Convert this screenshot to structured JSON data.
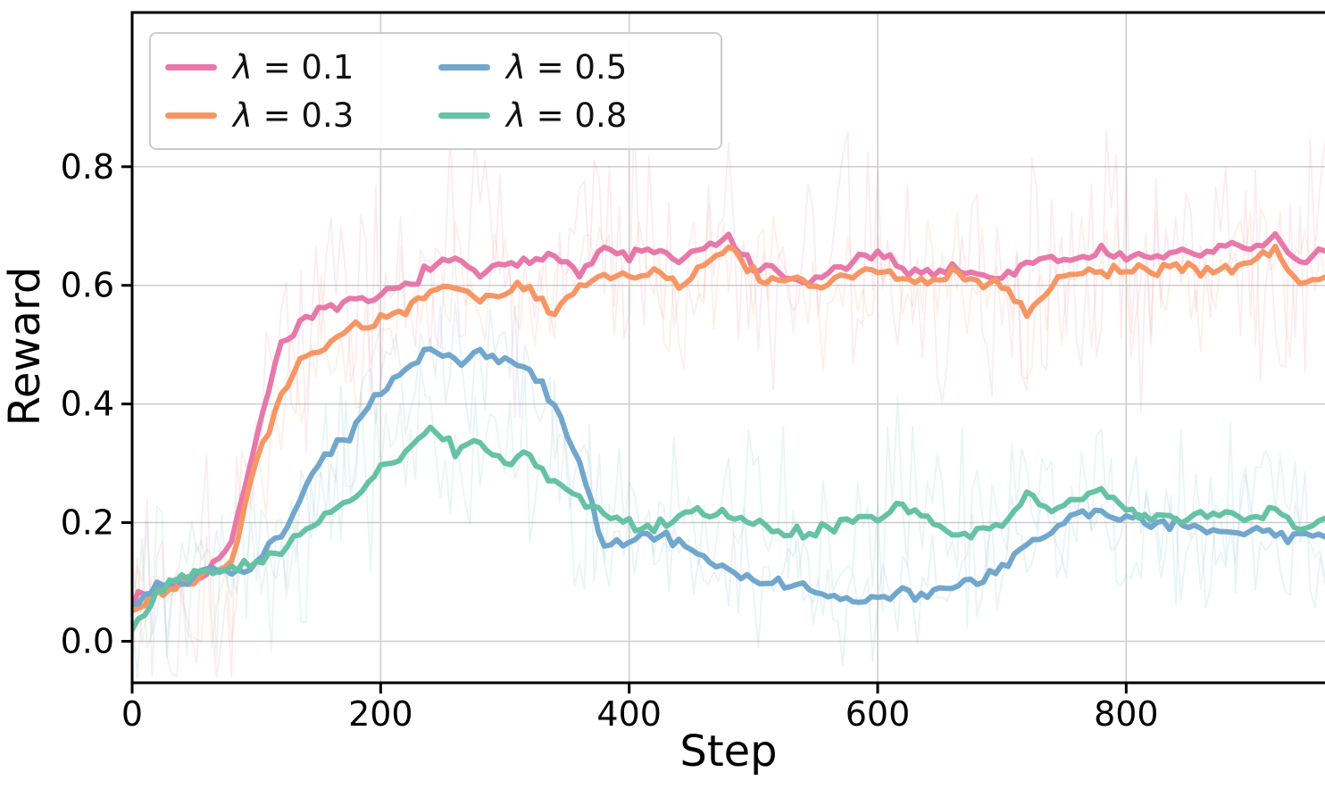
{
  "chart_data": {
    "type": "line",
    "title": "",
    "xlabel": "Step",
    "ylabel": "Reward",
    "xlim": [
      0,
      960
    ],
    "ylim": [
      -0.07,
      1.06
    ],
    "xticks": [
      0,
      200,
      400,
      600,
      800
    ],
    "yticks": [
      0.0,
      0.2,
      0.4,
      0.6,
      0.8
    ],
    "grid": true,
    "grid_color": "#cccccc",
    "legend_position": "upper left",
    "raw_opacity": 0.15,
    "x": [
      0,
      20,
      40,
      60,
      80,
      100,
      120,
      140,
      160,
      180,
      200,
      220,
      240,
      260,
      280,
      300,
      320,
      340,
      360,
      380,
      400,
      420,
      440,
      460,
      480,
      500,
      520,
      540,
      560,
      580,
      600,
      620,
      640,
      660,
      680,
      700,
      720,
      740,
      760,
      780,
      800,
      820,
      840,
      860,
      880,
      900,
      920,
      940,
      960
    ],
    "series": [
      {
        "name": "λ = 0.1",
        "label_symbol": "λ",
        "label_rest": " = 0.1",
        "color": "#e878aa",
        "raw_amp": 0.17,
        "values": [
          0.07,
          0.09,
          0.1,
          0.12,
          0.16,
          0.35,
          0.5,
          0.55,
          0.56,
          0.57,
          0.58,
          0.6,
          0.63,
          0.64,
          0.62,
          0.63,
          0.64,
          0.66,
          0.62,
          0.66,
          0.65,
          0.66,
          0.64,
          0.66,
          0.68,
          0.63,
          0.62,
          0.6,
          0.62,
          0.64,
          0.65,
          0.63,
          0.62,
          0.63,
          0.62,
          0.61,
          0.64,
          0.65,
          0.64,
          0.66,
          0.65,
          0.64,
          0.66,
          0.65,
          0.67,
          0.66,
          0.68,
          0.64,
          0.66
        ]
      },
      {
        "name": "λ = 0.3",
        "label_symbol": "λ",
        "label_rest": " = 0.3",
        "color": "#f79664",
        "raw_amp": 0.1,
        "values": [
          0.05,
          0.08,
          0.1,
          0.11,
          0.14,
          0.3,
          0.42,
          0.48,
          0.5,
          0.53,
          0.54,
          0.56,
          0.59,
          0.6,
          0.58,
          0.59,
          0.6,
          0.55,
          0.6,
          0.62,
          0.61,
          0.62,
          0.6,
          0.63,
          0.66,
          0.62,
          0.6,
          0.61,
          0.6,
          0.62,
          0.63,
          0.61,
          0.6,
          0.62,
          0.61,
          0.6,
          0.56,
          0.6,
          0.62,
          0.62,
          0.63,
          0.62,
          0.64,
          0.62,
          0.63,
          0.64,
          0.66,
          0.6,
          0.62
        ]
      },
      {
        "name": "λ = 0.5",
        "label_symbol": "λ",
        "label_rest": " = 0.5",
        "color": "#71a7cd",
        "raw_amp": 0.085,
        "values": [
          0.06,
          0.09,
          0.1,
          0.12,
          0.11,
          0.13,
          0.18,
          0.26,
          0.32,
          0.36,
          0.42,
          0.46,
          0.49,
          0.47,
          0.49,
          0.47,
          0.46,
          0.4,
          0.3,
          0.16,
          0.17,
          0.18,
          0.17,
          0.14,
          0.12,
          0.1,
          0.1,
          0.09,
          0.08,
          0.07,
          0.07,
          0.08,
          0.08,
          0.09,
          0.1,
          0.12,
          0.16,
          0.19,
          0.21,
          0.22,
          0.21,
          0.2,
          0.2,
          0.19,
          0.18,
          0.19,
          0.18,
          0.17,
          0.18
        ]
      },
      {
        "name": "λ = 0.8",
        "label_symbol": "λ",
        "label_rest": " = 0.8",
        "color": "#66c2a5",
        "raw_amp": 0.115,
        "values": [
          0.02,
          0.08,
          0.11,
          0.12,
          0.12,
          0.13,
          0.15,
          0.19,
          0.22,
          0.24,
          0.29,
          0.32,
          0.36,
          0.32,
          0.34,
          0.3,
          0.31,
          0.27,
          0.24,
          0.21,
          0.2,
          0.19,
          0.21,
          0.22,
          0.21,
          0.2,
          0.19,
          0.18,
          0.19,
          0.2,
          0.21,
          0.23,
          0.2,
          0.18,
          0.18,
          0.2,
          0.25,
          0.22,
          0.24,
          0.26,
          0.22,
          0.21,
          0.2,
          0.21,
          0.22,
          0.21,
          0.22,
          0.19,
          0.2
        ]
      }
    ]
  }
}
